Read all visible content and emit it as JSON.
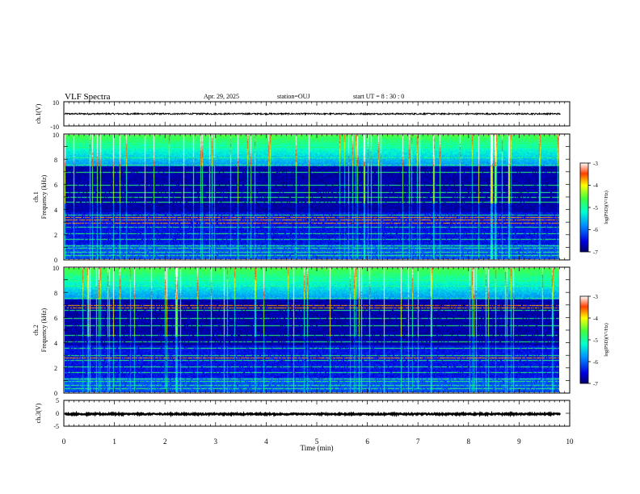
{
  "header": {
    "title": "VLF Spectra",
    "date": "Apr. 29, 2025",
    "station": "station=OUJ",
    "start": "start UT =  8 : 30 : 0"
  },
  "chart_data": {
    "type": "heatmap",
    "xlabel": "Time (min)",
    "xlim": [
      0,
      10
    ],
    "xticks": [
      "0",
      "1",
      "2",
      "3",
      "4",
      "5",
      "6",
      "7",
      "8",
      "9",
      "10"
    ],
    "data_end_min": 9.82,
    "panels": [
      {
        "kind": "waveform",
        "ylabel": "ch.1(V)",
        "ylim": [
          -10,
          10
        ],
        "yticks": [
          "10",
          "-10"
        ],
        "baseline_v": 0,
        "noise_amplitude_v": 0.6
      },
      {
        "kind": "spectrogram",
        "ylabel_top": "ch.1",
        "ylabel_bottom": "Frequency (kHz)",
        "ylim": [
          0,
          10
        ],
        "yticks": [
          "0",
          "2",
          "4",
          "6",
          "8",
          "10"
        ],
        "colorbar": {
          "label": "log(PSD)(V²/Hz)",
          "ticks": [
            "-3",
            "-4",
            "-5",
            "-6",
            "-7"
          ],
          "range": [
            -7,
            -3
          ]
        },
        "persistent_tones_khz": [
          0.3,
          0.6,
          0.9,
          1.1,
          1.6,
          2.1,
          2.6,
          2.9,
          3.2,
          3.6,
          4.6,
          5.0,
          5.4,
          6.0,
          7.0,
          7.6,
          8.2,
          9.0
        ],
        "strong_tones_khz": [
          2.9,
          3.2,
          3.4
        ]
      },
      {
        "kind": "spectrogram",
        "ylabel_top": "ch.2",
        "ylabel_bottom": "Frequency (kHz)",
        "ylim": [
          0,
          10
        ],
        "yticks": [
          "0",
          "2",
          "4",
          "6",
          "8",
          "10"
        ],
        "colorbar": {
          "label": "log(PSD)(V²/Hz)",
          "ticks": [
            "-3",
            "-4",
            "-5",
            "-6",
            "-7"
          ],
          "range": [
            -7,
            -3
          ]
        },
        "persistent_tones_khz": [
          0.3,
          0.6,
          0.9,
          1.1,
          1.6,
          2.1,
          2.6,
          3.0,
          3.6,
          4.1,
          4.6,
          5.4,
          6.0,
          6.6,
          7.0,
          7.6,
          8.6,
          9.0
        ],
        "strong_tones_khz": [
          2.8,
          6.8,
          7.0
        ]
      },
      {
        "kind": "waveform",
        "ylabel": "ch.3(V)",
        "ylim": [
          -5,
          5
        ],
        "yticks": [
          "5",
          "0",
          "-5"
        ],
        "baseline_v": -0.3,
        "noise_amplitude_v": 0.25
      }
    ]
  }
}
